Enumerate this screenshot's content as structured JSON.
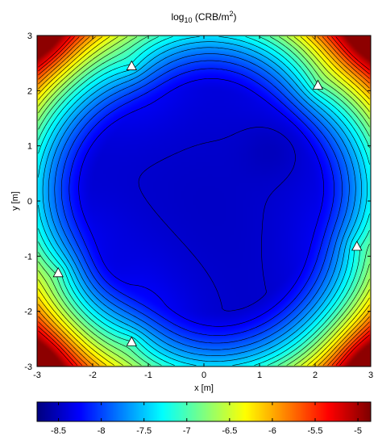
{
  "chart_data": {
    "type": "heatmap",
    "title_main": "log",
    "title_sub": "10",
    "title_rest": " (CRB/m",
    "title_sup": "2",
    "title_end": ")",
    "xlabel": "x [m]",
    "ylabel": "y [m]",
    "xlim": [
      -3,
      3
    ],
    "ylim": [
      -3,
      3
    ],
    "x_ticks": [
      -3,
      -2,
      -1,
      0,
      1,
      2,
      3
    ],
    "y_ticks": [
      -3,
      -2,
      -1,
      0,
      1,
      2,
      3
    ],
    "x_tick_labels": [
      "-3",
      "-2",
      "-1",
      "0",
      "1",
      "2",
      "3"
    ],
    "y_tick_labels": [
      "-3",
      "-2",
      "-1",
      "0",
      "1",
      "2",
      "3"
    ],
    "colorbar": {
      "range": [
        -8.75,
        -4.85
      ],
      "ticks": [
        -8.5,
        -8,
        -7.5,
        -7,
        -6.5,
        -6,
        -5.5,
        -5
      ],
      "tick_labels": [
        "-8.5",
        "-8",
        "-7.5",
        "-7",
        "-6.5",
        "-6",
        "-5.5",
        "-5"
      ]
    },
    "sensors": [
      {
        "x": -1.3,
        "y": 2.45
      },
      {
        "x": 2.05,
        "y": 2.1
      },
      {
        "x": 2.75,
        "y": -0.82
      },
      {
        "x": -2.62,
        "y": -1.3
      },
      {
        "x": -1.3,
        "y": -2.55
      }
    ],
    "value_floor": -8.7,
    "value_cap": -4.9,
    "contour_levels": [
      -8.6,
      -8.45,
      -8.3,
      -8.15,
      -8.0,
      -7.85,
      -7.7,
      -7.55,
      -7.4,
      -7.25,
      -7.1,
      -6.95,
      -6.8,
      -6.65,
      -6.5,
      -6.35,
      -6.2,
      -6.05,
      -5.9,
      -5.75,
      -5.6,
      -5.45,
      -5.3
    ],
    "colormap": "jet"
  }
}
